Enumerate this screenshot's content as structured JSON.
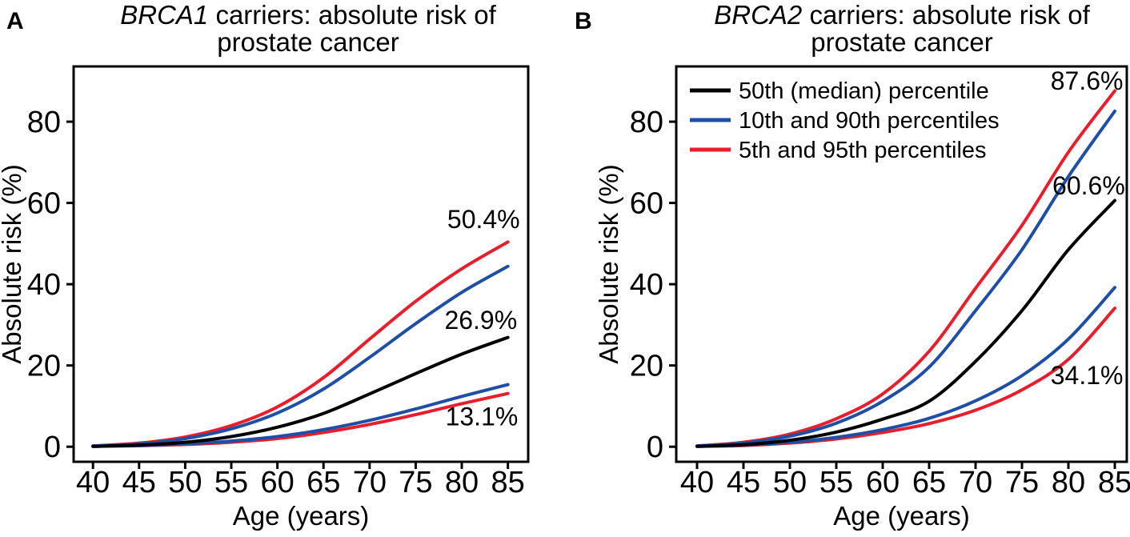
{
  "figure": {
    "background": "#ffffff",
    "palette": {
      "median": "#000000",
      "p10_90": "#1f4fa5",
      "p5_95": "#e81e2c"
    }
  },
  "chart_data": [
    {
      "panel_label": "A",
      "type": "line",
      "title_lines": [
        {
          "parts": [
            {
              "text": "BRCA1",
              "italic": true
            },
            {
              "text": " carriers: absolute risk of",
              "italic": false
            }
          ]
        },
        {
          "parts": [
            {
              "text": "prostate cancer",
              "italic": false
            }
          ]
        }
      ],
      "xlabel": "Age (years)",
      "ylabel": "Absolute risk (%)",
      "x": [
        40,
        45,
        50,
        55,
        60,
        65,
        70,
        75,
        80,
        85
      ],
      "xticks": [
        40,
        45,
        50,
        55,
        60,
        65,
        70,
        75,
        80,
        85
      ],
      "yticks": [
        0,
        20,
        40,
        60,
        80
      ],
      "xlim": [
        37.9,
        87.2
      ],
      "ylim": [
        -3.7,
        93.6
      ],
      "grid": false,
      "series": [
        {
          "key": "p95-upper",
          "name": "95th percentile",
          "color": "p5_95",
          "values": [
            0.2,
            0.9,
            2.4,
            5.2,
            9.8,
            17.0,
            26.5,
            35.8,
            43.8,
            50.4
          ]
        },
        {
          "key": "p90-upper",
          "name": "90th percentile",
          "color": "p10_90",
          "values": [
            0.2,
            0.7,
            2.0,
            4.4,
            8.3,
            14.2,
            22.0,
            30.3,
            38.0,
            44.4
          ]
        },
        {
          "key": "p5-lower",
          "name": "5th percentile",
          "color": "p5_95",
          "values": [
            0.1,
            0.25,
            0.55,
            1.1,
            2.0,
            3.5,
            5.5,
            7.9,
            10.6,
            13.1
          ]
        },
        {
          "key": "p10-lower",
          "name": "10th percentile",
          "color": "p10_90",
          "values": [
            0.1,
            0.3,
            0.7,
            1.4,
            2.5,
            4.2,
            6.5,
            9.3,
            12.4,
            15.3
          ]
        },
        {
          "key": "median",
          "name": "50th (median) percentile",
          "color": "median",
          "values": [
            0.1,
            0.4,
            1.1,
            2.5,
            4.8,
            8.2,
            13.0,
            18.0,
            22.8,
            26.9
          ]
        }
      ],
      "annotations": [
        {
          "text": "50.4%",
          "color": "p5_95",
          "x": 86.3,
          "y": 53.8,
          "anchor": "end"
        },
        {
          "text": "26.9%",
          "color": "median",
          "x": 86.0,
          "y": 29.0,
          "anchor": "end"
        },
        {
          "text": "13.1%",
          "color": "p5_95",
          "x": 86.1,
          "y": 5.3,
          "anchor": "end"
        }
      ]
    },
    {
      "panel_label": "B",
      "type": "line",
      "title_lines": [
        {
          "parts": [
            {
              "text": "BRCA2",
              "italic": true
            },
            {
              "text": " carriers: absolute risk of",
              "italic": false
            }
          ]
        },
        {
          "parts": [
            {
              "text": "prostate cancer",
              "italic": false
            }
          ]
        }
      ],
      "xlabel": "Age (years)",
      "ylabel": "Absolute risk (%)",
      "x": [
        40,
        45,
        50,
        55,
        60,
        65,
        70,
        75,
        80,
        85
      ],
      "xticks": [
        40,
        45,
        50,
        55,
        60,
        65,
        70,
        75,
        80,
        85
      ],
      "yticks": [
        0,
        20,
        40,
        60,
        80
      ],
      "xlim": [
        37.76,
        86.29
      ],
      "ylim": [
        -3.7,
        93.6
      ],
      "grid": false,
      "series": [
        {
          "key": "p95-upper",
          "name": "95th percentile",
          "color": "p5_95",
          "values": [
            0.2,
            1.1,
            3.1,
            6.9,
            13.0,
            23.5,
            39.0,
            54.5,
            72.5,
            87.6
          ]
        },
        {
          "key": "p90-upper",
          "name": "90th percentile",
          "color": "p10_90",
          "values": [
            0.2,
            0.9,
            2.6,
            5.8,
            11.2,
            19.6,
            33.5,
            48.5,
            66.5,
            82.6
          ]
        },
        {
          "key": "p5-lower",
          "name": "5th percentile",
          "color": "p5_95",
          "values": [
            0.1,
            0.3,
            0.9,
            1.9,
            3.5,
            5.7,
            9.0,
            14.0,
            21.5,
            34.1
          ]
        },
        {
          "key": "p10-lower",
          "name": "10th percentile",
          "color": "p10_90",
          "values": [
            0.1,
            0.4,
            1.1,
            2.3,
            4.2,
            7.0,
            11.3,
            17.5,
            26.5,
            39.2
          ]
        },
        {
          "key": "median",
          "name": "50th (median) percentile",
          "color": "median",
          "values": [
            0.1,
            0.5,
            1.6,
            3.6,
            6.8,
            11.2,
            21.0,
            33.5,
            48.5,
            60.6
          ]
        }
      ],
      "annotations": [
        {
          "text": "87.6%",
          "color": "p5_95",
          "x": 85.9,
          "y": 87.9,
          "anchor": "end"
        },
        {
          "text": "60.6%",
          "color": "median",
          "x": 86.1,
          "y": 62.1,
          "anchor": "end"
        },
        {
          "text": "34.1%",
          "color": "p5_95",
          "x": 85.9,
          "y": 15.4,
          "anchor": "end"
        }
      ],
      "legend": {
        "position": "top-left",
        "entries": [
          {
            "label": "50th (median) percentile",
            "color": "median"
          },
          {
            "label": "10th and 90th percentiles",
            "color": "p10_90"
          },
          {
            "label": "5th and 95th percentiles",
            "color": "p5_95"
          }
        ]
      }
    }
  ]
}
